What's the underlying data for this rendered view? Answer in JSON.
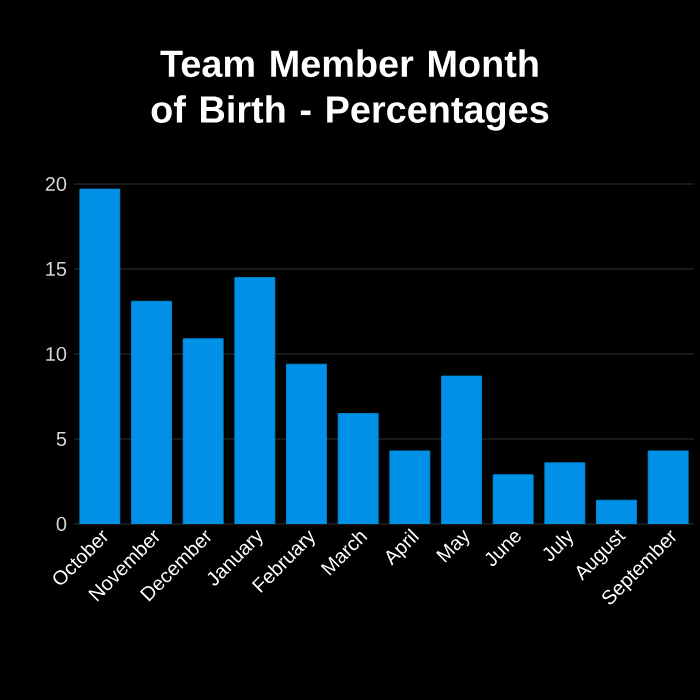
{
  "chart_data": {
    "type": "bar",
    "title": "Team Member Month of Birth - Percentages",
    "categories": [
      "October",
      "November",
      "December",
      "January",
      "February",
      "March",
      "April",
      "May",
      "June",
      "July",
      "August",
      "September"
    ],
    "values": [
      19.7,
      13.1,
      10.9,
      14.5,
      9.4,
      6.5,
      4.3,
      8.7,
      2.9,
      3.6,
      1.4,
      4.3
    ],
    "color": "#0091e6",
    "ylim": [
      0,
      20
    ],
    "yticks": [
      0,
      5,
      10,
      15,
      20
    ],
    "grid": "y"
  }
}
